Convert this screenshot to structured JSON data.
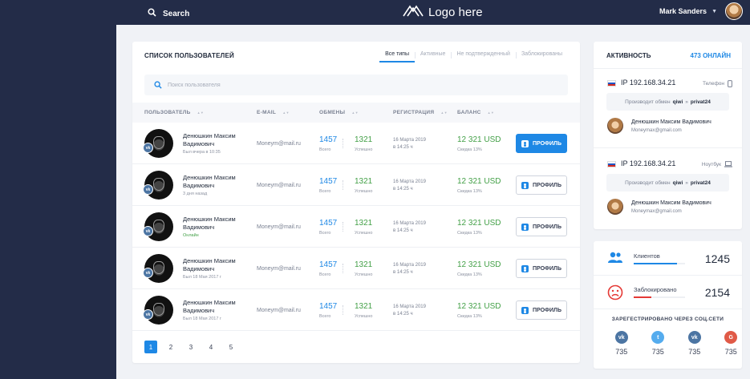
{
  "header": {
    "search_label": "Search",
    "logo_text": "Logo here",
    "user_name": "Mark Sanders"
  },
  "users_panel": {
    "title": "СПИСОК ПОЛЬЗОВАТЕЛЕЙ",
    "filters": [
      "Все типы",
      "Активные",
      "Не подтвержденный",
      "Заблокированы"
    ],
    "active_filter": "Все типы",
    "search_placeholder": "Поиск пользователя",
    "columns": [
      "ПОЛЬЗОВАТЕЛЬ",
      "E-MAIL",
      "ОБМЕНЫ",
      "РЕГИСТРАЦИЯ",
      "БАЛАНС"
    ],
    "rows": [
      {
        "name": "Денюшкин Максим Вадимович",
        "seen": "Был вчера в 10:35",
        "email": "Moneym@mail.ru",
        "exchanges": "1457",
        "exchanges_label": "Всего",
        "success": "1321",
        "success_label": "Успешно",
        "reg_date": "16 Марта 2019",
        "reg_time": "в 14:25 ч",
        "balance": "12 321 USD",
        "discount": "Скидка 13%",
        "button": "ПРОФИЛЬ"
      },
      {
        "name": "Денюшкин Максим Вадимович",
        "seen": "3 дня назад",
        "email": "Moneym@mail.ru",
        "exchanges": "1457",
        "exchanges_label": "Всего",
        "success": "1321",
        "success_label": "Успешно",
        "reg_date": "16 Марта 2019",
        "reg_time": "в 14:25 ч",
        "balance": "12 321 USD",
        "discount": "Скидка 13%",
        "button": "ПРОФИЛЬ"
      },
      {
        "name": "Денюшкин Максим Вадимович",
        "seen": "Онлайн",
        "email": "Moneym@mail.ru",
        "exchanges": "1457",
        "exchanges_label": "Всего",
        "success": "1321",
        "success_label": "Успешно",
        "reg_date": "16 Марта 2019",
        "reg_time": "в 14:25 ч",
        "balance": "12 321 USD",
        "discount": "Скидка 13%",
        "button": "ПРОФИЛЬ"
      },
      {
        "name": "Денюшкин Максим Вадимович",
        "seen": "Был 18 Мая 2017 г",
        "email": "Moneym@mail.ru",
        "exchanges": "1457",
        "exchanges_label": "Всего",
        "success": "1321",
        "success_label": "Успешно",
        "reg_date": "16 Марта 2019",
        "reg_time": "в 14:25 ч",
        "balance": "12 321 USD",
        "discount": "Скидка 13%",
        "button": "ПРОФИЛЬ"
      },
      {
        "name": "Денюшкин Максим Вадимович",
        "seen": "Был 18 Мая 2017 г",
        "email": "Moneym@mail.ru",
        "exchanges": "1457",
        "exchanges_label": "Всего",
        "success": "1321",
        "success_label": "Успешно",
        "reg_date": "16 Марта 2019",
        "reg_time": "в 14:25 ч",
        "balance": "12 321 USD",
        "discount": "Скидка 13%",
        "button": "ПРОФИЛЬ"
      }
    ],
    "pages": [
      "1",
      "2",
      "3",
      "4",
      "5"
    ],
    "current_page": "1"
  },
  "activity": {
    "title": "АКТИВНОСТЬ",
    "online": "473 ОНЛАЙН",
    "sessions": [
      {
        "ip": "IP 192.168.34.21",
        "device": "Телефон",
        "device_icon": "phone-icon",
        "exchange_prefix": "Производит обмен",
        "from": "qiwi",
        "arrow": "»",
        "to": "privat24",
        "name": "Денюшкин Максим Вадимович",
        "email": "Moneymax@gmail.com"
      },
      {
        "ip": "IP 192.168.34.21",
        "device": "Ноутбук",
        "device_icon": "laptop-icon",
        "exchange_prefix": "Производит обмен",
        "from": "qiwi",
        "arrow": "»",
        "to": "privat24",
        "name": "Денюшкин Максим Вадимович",
        "email": "Moneymax@gmail.com"
      }
    ]
  },
  "stats": {
    "clients_label": "Клиентов",
    "clients_value": "1245",
    "clients_fraction": 0.85,
    "blocked_label": "Заблокировано",
    "blocked_value": "2154",
    "blocked_fraction": 0.35,
    "social_title": "ЗАРЕГЕСТРИРОВАНО ЧЕРЕЗ СОЦ.СЕТИ",
    "socials": [
      {
        "icon": "vk-icon",
        "glyph": "vk",
        "count": "735",
        "color": "#4c75a3"
      },
      {
        "icon": "twitter-icon",
        "glyph": "t",
        "count": "735",
        "color": "#55acee"
      },
      {
        "icon": "vk-icon",
        "glyph": "vk",
        "count": "735",
        "color": "#4c75a3"
      },
      {
        "icon": "google-icon",
        "glyph": "G",
        "count": "735",
        "color": "#e05a47"
      }
    ]
  },
  "colors": {
    "accent": "#1e88e5",
    "success": "#43a047",
    "danger": "#e53935",
    "nav_bg": "#232c48",
    "page_bg": "#f0f2f6"
  }
}
